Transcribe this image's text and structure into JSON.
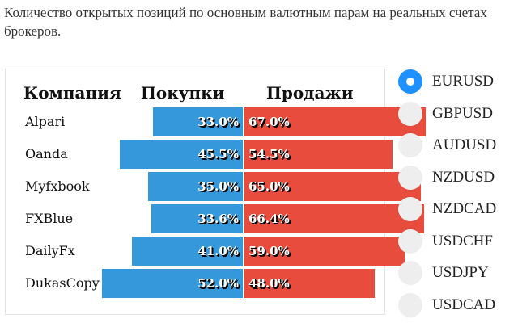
{
  "description": "Количество открытых позиций по основным валютным парам на реальных счетах брокеров.",
  "table": {
    "col_company": "Компания",
    "col_buy": "Покупки",
    "col_sell": "Продажи",
    "rows": [
      {
        "company": "Alpari",
        "buy": 33.0,
        "sell": 67.0,
        "buy_label": "33.0%",
        "sell_label": "67.0%"
      },
      {
        "company": "Oanda",
        "buy": 45.5,
        "sell": 54.5,
        "buy_label": "45.5%",
        "sell_label": "54.5%"
      },
      {
        "company": "Myfxbook",
        "buy": 35.0,
        "sell": 65.0,
        "buy_label": "35.0%",
        "sell_label": "65.0%"
      },
      {
        "company": "FXBlue",
        "buy": 33.6,
        "sell": 66.4,
        "buy_label": "33.6%",
        "sell_label": "66.4%"
      },
      {
        "company": "DailyFx",
        "buy": 41.0,
        "sell": 59.0,
        "buy_label": "41.0%",
        "sell_label": "59.0%"
      },
      {
        "company": "DukasCopy",
        "buy": 52.0,
        "sell": 48.0,
        "buy_label": "52.0%",
        "sell_label": "48.0%"
      }
    ]
  },
  "pairs": {
    "selected": "EURUSD",
    "options": [
      "EURUSD",
      "GBPUSD",
      "AUDUSD",
      "NZDUSD",
      "NZDCAD",
      "USDCHF",
      "USDJPY",
      "USDCAD"
    ]
  },
  "colors": {
    "buy": "#3498db",
    "sell": "#e74c3c",
    "radio_selected": "#1e90ff",
    "radio_idle": "#eeeeee"
  }
}
